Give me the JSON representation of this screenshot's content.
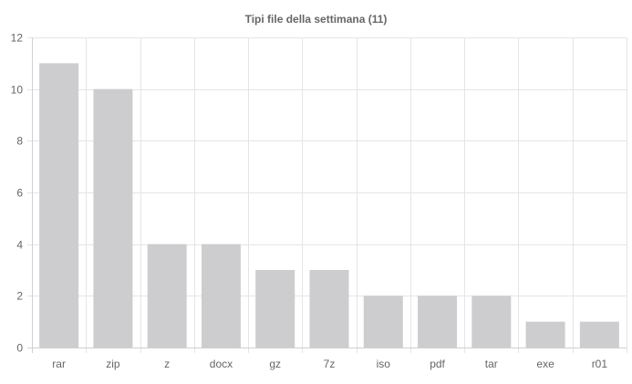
{
  "chart_data": {
    "type": "bar",
    "title": "Tipi file della settimana (11)",
    "xlabel": "",
    "ylabel": "",
    "categories": [
      "rar",
      "zip",
      "z",
      "docx",
      "gz",
      "7z",
      "iso",
      "pdf",
      "tar",
      "exe",
      "r01"
    ],
    "values": [
      11,
      10,
      4,
      4,
      3,
      3,
      2,
      2,
      2,
      1,
      1
    ],
    "ylim": [
      0,
      12
    ],
    "yticks": [
      0,
      2,
      4,
      6,
      8,
      10,
      12
    ],
    "grid": true,
    "legend": "none",
    "bar_color": "#cdcdcf"
  }
}
